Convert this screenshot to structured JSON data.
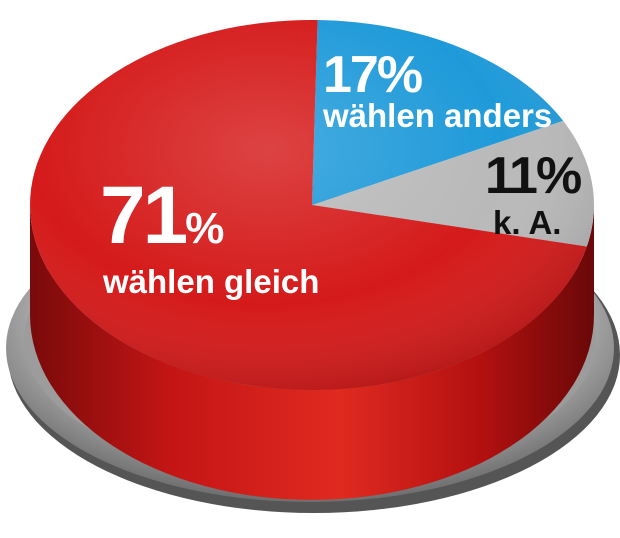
{
  "chart_data": {
    "type": "pie",
    "title": "",
    "slices": [
      {
        "name": "wählen gleich",
        "value": 71,
        "label_value": "71",
        "label_pct": "%",
        "color": "#d51a1a"
      },
      {
        "name": "wählen anders",
        "value": 17,
        "label_value": "17%",
        "color": "#1f9ad9"
      },
      {
        "name": "k. A.",
        "value": 11,
        "label_value": "11%",
        "color": "#b9b9b9"
      }
    ],
    "style": "3d-button-pie"
  }
}
